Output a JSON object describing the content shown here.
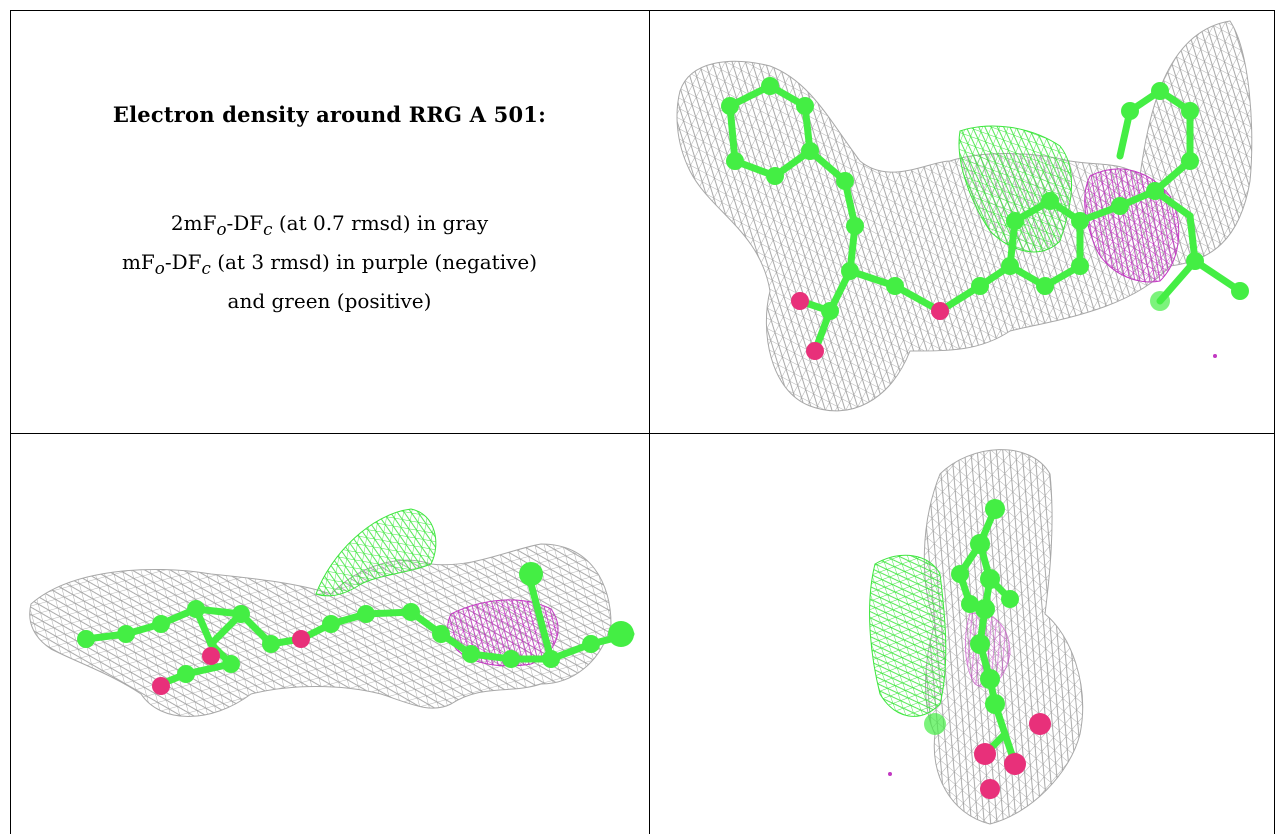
{
  "caption": {
    "title": "Electron density around RRG A 501:",
    "line1": {
      "a": "2mF",
      "sub_o": "o",
      "b": "-DF",
      "sub_c": "c",
      "c": " (at 0.7 rmsd) in gray"
    },
    "line2": {
      "a": "mF",
      "sub_o": "o",
      "b": "-DF",
      "sub_c": "c",
      "c": " (at 3 rmsd) in purple (negative)"
    },
    "line3": "and green (positive)"
  },
  "colors": {
    "density_2fofc": "#9a9a9a",
    "positive": "#3ee63e",
    "negative": "#c238c2",
    "carbon": "#44ee44",
    "oxygen": "#e8307a"
  }
}
